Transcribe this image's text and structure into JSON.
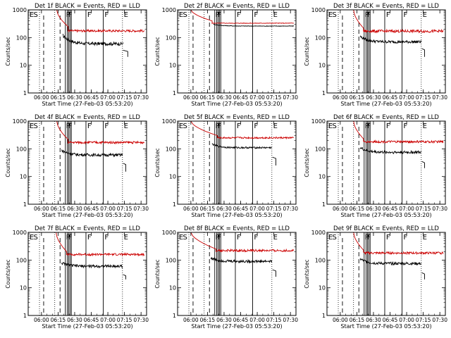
{
  "figure": {
    "title_template": "Det {n}f BLACK = Events, RED = LLD",
    "xlabel": "Start Time (27-Feb-03 05:53:20)",
    "ylabel": "Counts/sec",
    "colors": {
      "events": "#000000",
      "lld": "#cc0000",
      "axes": "#000000",
      "background": "#ffffff"
    }
  },
  "chart_data": [
    {
      "type": "line",
      "detector": "1f",
      "title": "Det 1f BLACK = Events, RED = LLD",
      "xlabel": "Start Time (27-Feb-03 05:53:20)",
      "ylabel": "Counts/sec",
      "xlim": [
        5.8,
        7.583
      ],
      "xticks": [
        "06:00",
        "06:15",
        "06:30",
        "06:45",
        "07:00",
        "07:15",
        "07:30"
      ],
      "ylim": [
        1,
        1000
      ],
      "yscale": "log",
      "yticks": [
        "1",
        "10",
        "100",
        "1000"
      ],
      "dashed_lines_hours": [
        6.033,
        6.28
      ],
      "dotted_lines_hours": [
        5.97,
        6.2,
        7.22
      ],
      "solid_lines_hours": [
        6.36,
        6.39,
        6.41,
        6.43,
        6.45,
        6.67,
        6.93
      ],
      "event_labels": [
        {
          "text": "E",
          "x": 5.82
        },
        {
          "text": "S",
          "x": 5.88
        },
        {
          "text": "P",
          "x": 6.37
        },
        {
          "text": "F",
          "x": 6.4
        },
        {
          "text": "F",
          "x": 6.69
        },
        {
          "text": "F",
          "x": 6.95
        },
        {
          "text": "E",
          "x": 7.24
        }
      ],
      "series": [
        {
          "name": "Events",
          "color": "#000000",
          "segments": [
            {
              "start": 6.32,
              "end": 7.23,
              "peak": 120,
              "base": 60,
              "noise": 0.06
            }
          ],
          "tail": {
            "start": 7.23,
            "end": 7.3,
            "from": 35,
            "to": 20
          }
        },
        {
          "name": "LLD",
          "color": "#cc0000",
          "decay": {
            "from": 6.23,
            "to": 6.4,
            "start": 1000,
            "end": 250
          },
          "segments": [
            {
              "start": 6.4,
              "end": 7.55,
              "base": 175,
              "noise": 0.04
            }
          ]
        }
      ]
    },
    {
      "type": "line",
      "detector": "2f",
      "title": "Det 2f BLACK = Events, RED = LLD",
      "xlabel": "Start Time (27-Feb-03 05:53:20)",
      "ylabel": "Counts/sec",
      "xlim": [
        5.8,
        7.583
      ],
      "xticks": [
        "06:00",
        "06:15",
        "06:30",
        "06:45",
        "07:00",
        "07:15",
        "07:30"
      ],
      "ylim": [
        1,
        1000
      ],
      "yscale": "log",
      "yticks": [
        "1",
        "10",
        "100",
        "1000"
      ],
      "dashed_lines_hours": [
        6.033,
        6.28
      ],
      "dotted_lines_hours": [
        5.97,
        6.2,
        7.22
      ],
      "solid_lines_hours": [
        6.36,
        6.39,
        6.41,
        6.43,
        6.45,
        6.67,
        6.93
      ],
      "event_labels": [
        {
          "text": "E",
          "x": 5.82
        },
        {
          "text": "S",
          "x": 5.88
        },
        {
          "text": "P",
          "x": 6.37
        },
        {
          "text": "F",
          "x": 6.4
        },
        {
          "text": "F",
          "x": 6.69
        },
        {
          "text": "F",
          "x": 6.95
        },
        {
          "text": "E",
          "x": 7.24
        }
      ],
      "series": [
        {
          "name": "Events",
          "color": "#000000",
          "segments": [
            {
              "start": 6.34,
              "end": 7.55,
              "peak": 300,
              "base": 260,
              "noise": 0.01
            }
          ]
        },
        {
          "name": "LLD",
          "color": "#cc0000",
          "decay": {
            "from": 6.0,
            "to": 6.32,
            "start": 1000,
            "end": 400
          },
          "segments": [
            {
              "start": 6.32,
              "end": 7.55,
              "base": 330,
              "noise": 0.01
            }
          ]
        }
      ]
    },
    {
      "type": "line",
      "detector": "3f",
      "title": "Det 3f BLACK = Events, RED = LLD",
      "xlabel": "Start Time (27-Feb-03 05:53:20)",
      "ylabel": "Counts/sec",
      "xlim": [
        5.8,
        7.583
      ],
      "xticks": [
        "06:00",
        "06:15",
        "06:30",
        "06:45",
        "07:00",
        "07:15",
        "07:30"
      ],
      "ylim": [
        1,
        1000
      ],
      "yscale": "log",
      "yticks": [
        "1",
        "10",
        "100",
        "1000"
      ],
      "dashed_lines_hours": [
        6.033,
        6.28
      ],
      "dotted_lines_hours": [
        5.97,
        6.2,
        7.22
      ],
      "solid_lines_hours": [
        6.36,
        6.39,
        6.41,
        6.43,
        6.45,
        6.67,
        6.93
      ],
      "event_labels": [
        {
          "text": "E",
          "x": 5.82
        },
        {
          "text": "S",
          "x": 5.88
        },
        {
          "text": "P",
          "x": 6.37
        },
        {
          "text": "F",
          "x": 6.4
        },
        {
          "text": "F",
          "x": 6.69
        },
        {
          "text": "F",
          "x": 6.95
        },
        {
          "text": "E",
          "x": 7.24
        }
      ],
      "series": [
        {
          "name": "Events",
          "color": "#000000",
          "segments": [
            {
              "start": 6.3,
              "end": 7.22,
              "peak": 110,
              "base": 70,
              "noise": 0.05
            }
          ],
          "tail": {
            "start": 7.23,
            "end": 7.27,
            "from": 40,
            "to": 20
          }
        },
        {
          "name": "LLD",
          "color": "#cc0000",
          "decay": {
            "from": 6.2,
            "to": 6.35,
            "start": 1000,
            "end": 220
          },
          "segments": [
            {
              "start": 6.35,
              "end": 7.55,
              "base": 170,
              "noise": 0.05
            }
          ]
        }
      ]
    },
    {
      "type": "line",
      "detector": "4f",
      "title": "Det 4f BLACK = Events, RED = LLD",
      "xlabel": "Start Time (27-Feb-03 05:53:20)",
      "ylabel": "Counts/sec",
      "xlim": [
        5.8,
        7.583
      ],
      "xticks": [
        "06:00",
        "06:15",
        "06:30",
        "06:45",
        "07:00",
        "07:15",
        "07:30"
      ],
      "ylim": [
        1,
        1000
      ],
      "yscale": "log",
      "yticks": [
        "1",
        "10",
        "100",
        "1000"
      ],
      "dashed_lines_hours": [
        6.033,
        6.28
      ],
      "dotted_lines_hours": [
        5.97,
        6.2,
        7.22
      ],
      "solid_lines_hours": [
        6.36,
        6.39,
        6.41,
        6.43,
        6.45,
        6.67,
        6.93
      ],
      "event_labels": [
        {
          "text": "E",
          "x": 5.82
        },
        {
          "text": "S",
          "x": 5.88
        },
        {
          "text": "P",
          "x": 6.37
        },
        {
          "text": "F",
          "x": 6.4
        },
        {
          "text": "F",
          "x": 6.69
        },
        {
          "text": "F",
          "x": 6.95
        },
        {
          "text": "E",
          "x": 7.24
        }
      ],
      "series": [
        {
          "name": "Events",
          "color": "#000000",
          "segments": [
            {
              "start": 6.3,
              "end": 7.22,
              "peak": 90,
              "base": 60,
              "noise": 0.05
            }
          ],
          "tail": {
            "start": 7.23,
            "end": 7.27,
            "from": 30,
            "to": 15
          }
        },
        {
          "name": "LLD",
          "color": "#cc0000",
          "decay": {
            "from": 6.23,
            "to": 6.4,
            "start": 1000,
            "end": 220
          },
          "segments": [
            {
              "start": 6.4,
              "end": 7.55,
              "base": 170,
              "noise": 0.04
            }
          ]
        }
      ]
    },
    {
      "type": "line",
      "detector": "5f",
      "title": "Det 5f BLACK = Events, RED = LLD",
      "xlabel": "Start Time (27-Feb-03 05:53:20)",
      "ylabel": "Counts/sec",
      "xlim": [
        5.8,
        7.583
      ],
      "xticks": [
        "06:00",
        "06:15",
        "06:30",
        "06:45",
        "07:00",
        "07:15",
        "07:30"
      ],
      "ylim": [
        1,
        1000
      ],
      "yscale": "log",
      "yticks": [
        "1",
        "10",
        "100",
        "1000"
      ],
      "dashed_lines_hours": [
        6.033,
        6.28
      ],
      "dotted_lines_hours": [
        5.97,
        6.2,
        7.22
      ],
      "solid_lines_hours": [
        6.36,
        6.39,
        6.41,
        6.43,
        6.45,
        6.67,
        6.93
      ],
      "event_labels": [
        {
          "text": "E",
          "x": 5.82
        },
        {
          "text": "S",
          "x": 5.88
        },
        {
          "text": "P",
          "x": 6.37
        },
        {
          "text": "F",
          "x": 6.4
        },
        {
          "text": "F",
          "x": 6.69
        },
        {
          "text": "F",
          "x": 6.95
        },
        {
          "text": "E",
          "x": 7.24
        }
      ],
      "series": [
        {
          "name": "Events",
          "color": "#000000",
          "segments": [
            {
              "start": 6.32,
              "end": 7.22,
              "peak": 150,
              "base": 110,
              "noise": 0.03
            }
          ],
          "tail": {
            "start": 7.23,
            "end": 7.28,
            "from": 50,
            "to": 25
          }
        },
        {
          "name": "LLD",
          "color": "#cc0000",
          "decay": {
            "from": 6.0,
            "to": 6.4,
            "start": 1000,
            "end": 300
          },
          "segments": [
            {
              "start": 6.4,
              "end": 7.55,
              "base": 250,
              "noise": 0.03
            }
          ]
        }
      ]
    },
    {
      "type": "line",
      "detector": "6f",
      "title": "Det 6f BLACK = Events, RED = LLD",
      "xlabel": "Start Time (27-Feb-03 05:53:20)",
      "ylabel": "Counts/sec",
      "xlim": [
        5.8,
        7.583
      ],
      "xticks": [
        "06:00",
        "06:15",
        "06:30",
        "06:45",
        "07:00",
        "07:15",
        "07:30"
      ],
      "ylim": [
        1,
        1000
      ],
      "yscale": "log",
      "yticks": [
        "1",
        "10",
        "100",
        "1000"
      ],
      "dashed_lines_hours": [
        6.033,
        6.28
      ],
      "dotted_lines_hours": [
        5.97,
        6.2,
        7.22
      ],
      "solid_lines_hours": [
        6.36,
        6.39,
        6.41,
        6.43,
        6.45,
        6.67,
        6.93
      ],
      "event_labels": [
        {
          "text": "E",
          "x": 5.82
        },
        {
          "text": "S",
          "x": 5.88
        },
        {
          "text": "P",
          "x": 6.37
        },
        {
          "text": "F",
          "x": 6.4
        },
        {
          "text": "F",
          "x": 6.69
        },
        {
          "text": "F",
          "x": 6.95
        },
        {
          "text": "E",
          "x": 7.24
        }
      ],
      "series": [
        {
          "name": "Events",
          "color": "#000000",
          "segments": [
            {
              "start": 6.3,
              "end": 7.22,
              "peak": 110,
              "base": 75,
              "noise": 0.05
            }
          ],
          "tail": {
            "start": 7.23,
            "end": 7.27,
            "from": 35,
            "to": 20
          }
        },
        {
          "name": "LLD",
          "color": "#cc0000",
          "decay": {
            "from": 6.2,
            "to": 6.35,
            "start": 1000,
            "end": 230
          },
          "segments": [
            {
              "start": 6.35,
              "end": 7.55,
              "base": 180,
              "noise": 0.04
            }
          ]
        }
      ]
    },
    {
      "type": "line",
      "detector": "7f",
      "title": "Det 7f BLACK = Events, RED = LLD",
      "xlabel": "Start Time (27-Feb-03 05:53:20)",
      "ylabel": "Counts/sec",
      "xlim": [
        5.8,
        7.583
      ],
      "xticks": [
        "06:00",
        "06:15",
        "06:30",
        "06:45",
        "07:00",
        "07:15",
        "07:30"
      ],
      "ylim": [
        1,
        1000
      ],
      "yscale": "log",
      "yticks": [
        "1",
        "10",
        "100",
        "1000"
      ],
      "dashed_lines_hours": [
        6.033,
        6.28
      ],
      "dotted_lines_hours": [
        5.97,
        6.2,
        7.22
      ],
      "solid_lines_hours": [
        6.36,
        6.39,
        6.41,
        6.43,
        6.45,
        6.67,
        6.93
      ],
      "event_labels": [
        {
          "text": "E",
          "x": 5.82
        },
        {
          "text": "S",
          "x": 5.88
        },
        {
          "text": "P",
          "x": 6.37
        },
        {
          "text": "F",
          "x": 6.4
        },
        {
          "text": "F",
          "x": 6.69
        },
        {
          "text": "F",
          "x": 6.95
        },
        {
          "text": "E",
          "x": 7.24
        }
      ],
      "series": [
        {
          "name": "Events",
          "color": "#000000",
          "segments": [
            {
              "start": 6.3,
              "end": 7.22,
              "peak": 80,
              "base": 60,
              "noise": 0.05
            }
          ],
          "tail": {
            "start": 7.23,
            "end": 7.27,
            "from": 30,
            "to": 20
          }
        },
        {
          "name": "LLD",
          "color": "#cc0000",
          "decay": {
            "from": 6.22,
            "to": 6.38,
            "start": 1000,
            "end": 200
          },
          "segments": [
            {
              "start": 6.38,
              "end": 7.55,
              "base": 160,
              "noise": 0.04
            }
          ]
        }
      ]
    },
    {
      "type": "line",
      "detector": "8f",
      "title": "Det 8f BLACK = Events, RED = LLD",
      "xlabel": "Start Time (27-Feb-03 05:53:20)",
      "ylabel": "Counts/sec",
      "xlim": [
        5.8,
        7.583
      ],
      "xticks": [
        "06:00",
        "06:15",
        "06:30",
        "06:45",
        "07:00",
        "07:15",
        "07:30"
      ],
      "ylim": [
        1,
        1000
      ],
      "yscale": "log",
      "yticks": [
        "1",
        "10",
        "100",
        "1000"
      ],
      "dashed_lines_hours": [
        6.033,
        6.28
      ],
      "dotted_lines_hours": [
        5.97,
        6.2,
        7.22
      ],
      "solid_lines_hours": [
        6.36,
        6.39,
        6.41,
        6.43,
        6.45,
        6.67,
        6.93
      ],
      "event_labels": [
        {
          "text": "E",
          "x": 5.82
        },
        {
          "text": "S",
          "x": 5.88
        },
        {
          "text": "P",
          "x": 6.37
        },
        {
          "text": "F",
          "x": 6.4
        },
        {
          "text": "F",
          "x": 6.69
        },
        {
          "text": "F",
          "x": 6.95
        },
        {
          "text": "E",
          "x": 7.24
        }
      ],
      "series": [
        {
          "name": "Events",
          "color": "#000000",
          "segments": [
            {
              "start": 6.3,
              "end": 7.22,
              "peak": 120,
              "base": 90,
              "noise": 0.05
            }
          ],
          "tail": {
            "start": 7.23,
            "end": 7.28,
            "from": 45,
            "to": 25
          }
        },
        {
          "name": "LLD",
          "color": "#cc0000",
          "decay": {
            "from": 6.0,
            "to": 6.38,
            "start": 1000,
            "end": 250
          },
          "segments": [
            {
              "start": 6.38,
              "end": 7.55,
              "base": 220,
              "noise": 0.04
            }
          ]
        }
      ]
    },
    {
      "type": "line",
      "detector": "9f",
      "title": "Det 9f BLACK = Events, RED = LLD",
      "xlabel": "Start Time (27-Feb-03 05:53:20)",
      "ylabel": "Counts/sec",
      "xlim": [
        5.8,
        7.583
      ],
      "xticks": [
        "06:00",
        "06:15",
        "06:30",
        "06:45",
        "07:00",
        "07:15",
        "07:30"
      ],
      "ylim": [
        1,
        1000
      ],
      "yscale": "log",
      "yticks": [
        "1",
        "10",
        "100",
        "1000"
      ],
      "dashed_lines_hours": [
        6.033,
        6.28
      ],
      "dotted_lines_hours": [
        5.97,
        6.2,
        7.22
      ],
      "solid_lines_hours": [
        6.36,
        6.39,
        6.41,
        6.43,
        6.45,
        6.67,
        6.93
      ],
      "event_labels": [
        {
          "text": "E",
          "x": 5.82
        },
        {
          "text": "S",
          "x": 5.88
        },
        {
          "text": "P",
          "x": 6.37
        },
        {
          "text": "F",
          "x": 6.4
        },
        {
          "text": "F",
          "x": 6.69
        },
        {
          "text": "F",
          "x": 6.95
        },
        {
          "text": "E",
          "x": 7.24
        }
      ],
      "series": [
        {
          "name": "Events",
          "color": "#000000",
          "segments": [
            {
              "start": 6.3,
              "end": 7.22,
              "peak": 110,
              "base": 75,
              "noise": 0.05
            }
          ],
          "tail": {
            "start": 7.23,
            "end": 7.27,
            "from": 35,
            "to": 20
          }
        },
        {
          "name": "LLD",
          "color": "#cc0000",
          "decay": {
            "from": 6.2,
            "to": 6.35,
            "start": 1000,
            "end": 230
          },
          "segments": [
            {
              "start": 6.35,
              "end": 7.55,
              "base": 180,
              "noise": 0.04
            }
          ]
        }
      ]
    }
  ]
}
